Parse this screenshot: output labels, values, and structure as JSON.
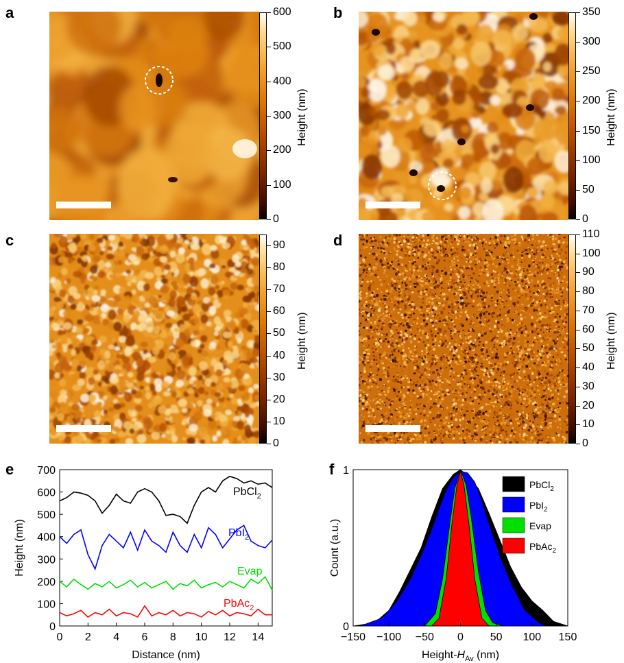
{
  "panel_labels": [
    "a",
    "b",
    "c",
    "d",
    "e",
    "f"
  ],
  "colorbars": {
    "a": {
      "title": "Height (nm)",
      "ticks": [
        "600",
        "500",
        "400",
        "300",
        "200",
        "100",
        "0"
      ],
      "max": 600
    },
    "b": {
      "title": "Height (nm)",
      "ticks": [
        "350",
        "300",
        "250",
        "200",
        "150",
        "100",
        "50",
        "0"
      ],
      "max": 350
    },
    "c": {
      "title": "Height (nm)",
      "ticks": [
        "90",
        "80",
        "70",
        "60",
        "50",
        "40",
        "30",
        "20",
        "10",
        "0"
      ],
      "max": 95
    },
    "d": {
      "title": "Height (nm)",
      "ticks": [
        "110",
        "100",
        "90",
        "80",
        "70",
        "60",
        "50",
        "40",
        "30",
        "20",
        "10",
        "0"
      ],
      "max": 110
    }
  },
  "colors": {
    "pbcl2": "#000000",
    "pbi2": "#0000ff",
    "evap": "#00e000",
    "pbac2": "#ff0000",
    "afm_low": "#2a0800",
    "afm_mid": "#d9780a",
    "afm_high": "#ffffff"
  },
  "chart_data": [
    {
      "type": "line",
      "panel": "e",
      "xlabel": "Distance (nm)",
      "ylabel": "Height (nm)",
      "xlim": [
        0,
        15
      ],
      "ylim": [
        0,
        700
      ],
      "xticks": [
        "0",
        "2",
        "4",
        "6",
        "8",
        "10",
        "12",
        "14"
      ],
      "yticks": [
        "0",
        "100",
        "200",
        "300",
        "400",
        "500",
        "600",
        "700"
      ],
      "series": [
        {
          "name": "PbCl2",
          "label_main": "PbCl",
          "label_sub": "2",
          "color": "#000000",
          "x": [
            0,
            0.5,
            1,
            1.5,
            2,
            2.5,
            3,
            3.5,
            4,
            4.5,
            5,
            5.5,
            6,
            6.5,
            7,
            7.5,
            8,
            8.5,
            9,
            9.5,
            10,
            10.5,
            11,
            11.5,
            12,
            12.5,
            13,
            13.5,
            14,
            14.5,
            15
          ],
          "y": [
            560,
            575,
            600,
            595,
            585,
            560,
            505,
            540,
            590,
            560,
            550,
            600,
            615,
            600,
            560,
            495,
            500,
            490,
            460,
            540,
            600,
            620,
            600,
            650,
            670,
            660,
            640,
            650,
            635,
            640,
            620
          ]
        },
        {
          "name": "PbI2",
          "label_main": "PbI",
          "label_sub": "2",
          "color": "#0000ff",
          "x": [
            0,
            0.5,
            1,
            1.5,
            2,
            2.5,
            3,
            3.5,
            4,
            4.5,
            5,
            5.5,
            6,
            6.5,
            7,
            7.5,
            8,
            8.5,
            9,
            9.5,
            10,
            10.5,
            11,
            11.5,
            12,
            12.5,
            13,
            13.5,
            14,
            14.5,
            15
          ],
          "y": [
            400,
            370,
            410,
            430,
            320,
            255,
            360,
            410,
            380,
            350,
            420,
            340,
            430,
            380,
            360,
            330,
            420,
            360,
            330,
            410,
            350,
            440,
            410,
            350,
            390,
            430,
            450,
            380,
            360,
            350,
            385
          ]
        },
        {
          "name": "Evap",
          "label_main": "Evap",
          "label_sub": "",
          "color": "#00e000",
          "x": [
            0,
            0.5,
            1,
            1.5,
            2,
            2.5,
            3,
            3.5,
            4,
            4.5,
            5,
            5.5,
            6,
            6.5,
            7,
            7.5,
            8,
            8.5,
            9,
            9.5,
            10,
            10.5,
            11,
            11.5,
            12,
            12.5,
            13,
            13.5,
            14,
            14.5,
            15
          ],
          "y": [
            200,
            175,
            210,
            185,
            165,
            190,
            175,
            200,
            170,
            185,
            205,
            175,
            195,
            170,
            185,
            200,
            165,
            190,
            180,
            205,
            170,
            185,
            195,
            175,
            200,
            185,
            170,
            210,
            190,
            220,
            160
          ]
        },
        {
          "name": "PbAc2",
          "label_main": "PbAc",
          "label_sub": "2",
          "color": "#ff0000",
          "x": [
            0,
            0.5,
            1,
            1.5,
            2,
            2.5,
            3,
            3.5,
            4,
            4.5,
            5,
            5.5,
            6,
            6.5,
            7,
            7.5,
            8,
            8.5,
            9,
            9.5,
            10,
            10.5,
            11,
            11.5,
            12,
            12.5,
            13,
            13.5,
            14,
            14.5,
            15
          ],
          "y": [
            60,
            45,
            55,
            70,
            40,
            60,
            50,
            75,
            45,
            60,
            55,
            40,
            90,
            45,
            60,
            50,
            70,
            45,
            60,
            55,
            40,
            65,
            50,
            70,
            45,
            60,
            55,
            45,
            75,
            50,
            50
          ]
        }
      ]
    },
    {
      "type": "area",
      "panel": "f",
      "xlabel_main": "Height-",
      "xlabel_h": "H",
      "xlabel_sub": "Av",
      "xlabel_unit": " (nm)",
      "ylabel": "Count (a.u.)",
      "xlim": [
        -150,
        150
      ],
      "ylim": [
        0,
        1
      ],
      "xticks": [
        "−150",
        "−100",
        "−50",
        "0",
        "50",
        "100",
        "150"
      ],
      "yticks": [
        "0",
        "1"
      ],
      "legend": "top-right",
      "series": [
        {
          "name": "PbCl2",
          "label_main": "PbCl",
          "label_sub": "2",
          "color": "#000000",
          "x": [
            -150,
            -120,
            -100,
            -85,
            -70,
            -55,
            -40,
            -25,
            -10,
            0,
            10,
            25,
            40,
            55,
            70,
            85,
            100,
            115,
            130,
            150
          ],
          "y": [
            0,
            0.02,
            0.1,
            0.22,
            0.36,
            0.5,
            0.7,
            0.88,
            0.97,
            1,
            0.96,
            0.88,
            0.72,
            0.55,
            0.38,
            0.25,
            0.16,
            0.1,
            0.03,
            0
          ]
        },
        {
          "name": "PbI2",
          "label_main": "PbI",
          "label_sub": "2",
          "color": "#0000ff",
          "x": [
            -140,
            -110,
            -90,
            -70,
            -55,
            -40,
            -30,
            -20,
            -10,
            0,
            10,
            20,
            30,
            40,
            55,
            70,
            90,
            110,
            120
          ],
          "y": [
            0,
            0.05,
            0.15,
            0.3,
            0.45,
            0.62,
            0.75,
            0.87,
            0.95,
            0.99,
            0.98,
            0.92,
            0.8,
            0.65,
            0.45,
            0.28,
            0.1,
            0.02,
            0
          ]
        },
        {
          "name": "Evap",
          "label_main": "Evap",
          "label_sub": "",
          "color": "#00e000",
          "x": [
            -50,
            -35,
            -25,
            -15,
            -8,
            0,
            8,
            15,
            25,
            35,
            45,
            60
          ],
          "y": [
            0,
            0.08,
            0.3,
            0.65,
            0.88,
            1,
            0.9,
            0.7,
            0.35,
            0.1,
            0.02,
            0
          ]
        },
        {
          "name": "PbAc2",
          "label_main": "PbAc",
          "label_sub": "2",
          "color": "#ff0000",
          "x": [
            -40,
            -30,
            -20,
            -12,
            -5,
            0,
            5,
            12,
            20,
            30,
            40
          ],
          "y": [
            0,
            0.05,
            0.3,
            0.65,
            0.9,
            0.99,
            0.9,
            0.65,
            0.3,
            0.05,
            0
          ]
        }
      ]
    }
  ]
}
